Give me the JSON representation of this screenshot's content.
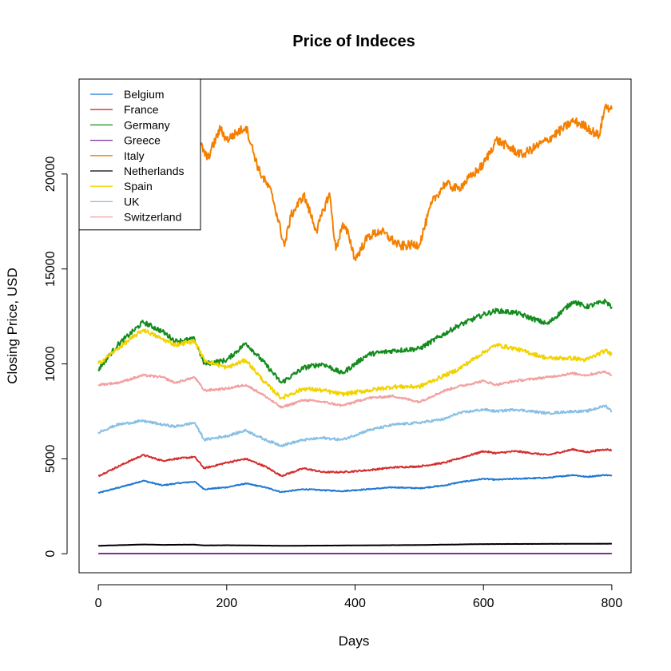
{
  "chart_data": {
    "type": "line",
    "title": "Price of Indeces",
    "xlabel": "Days",
    "ylabel": "Closing Price, USD",
    "xlim": [
      -30,
      830
    ],
    "ylim": [
      -1000,
      25000
    ],
    "xticks": [
      0,
      200,
      400,
      600,
      800
    ],
    "yticks": [
      0,
      5000,
      10000,
      15000,
      20000
    ],
    "grid": false,
    "legend_position": "top-left",
    "series": [
      {
        "name": "Belgium",
        "color": "#1F78D4",
        "x": [
          0,
          50,
          70,
          100,
          120,
          150,
          165,
          200,
          230,
          260,
          285,
          320,
          350,
          380,
          420,
          460,
          500,
          540,
          560,
          600,
          620,
          650,
          700,
          740,
          760,
          790,
          800
        ],
        "y": [
          3200,
          3650,
          3850,
          3600,
          3700,
          3800,
          3400,
          3500,
          3700,
          3500,
          3250,
          3400,
          3350,
          3300,
          3400,
          3500,
          3450,
          3600,
          3750,
          3950,
          3900,
          3950,
          4000,
          4150,
          4050,
          4150,
          4100
        ]
      },
      {
        "name": "France",
        "color": "#D32F2F",
        "x": [
          0,
          50,
          70,
          100,
          120,
          150,
          165,
          200,
          230,
          260,
          285,
          320,
          350,
          380,
          420,
          460,
          500,
          540,
          560,
          600,
          620,
          650,
          700,
          740,
          760,
          790,
          800
        ],
        "y": [
          4100,
          4900,
          5200,
          4900,
          5000,
          5100,
          4500,
          4800,
          5000,
          4600,
          4100,
          4500,
          4300,
          4300,
          4400,
          4550,
          4600,
          4800,
          5000,
          5400,
          5300,
          5400,
          5200,
          5500,
          5350,
          5500,
          5450
        ]
      },
      {
        "name": "Germany",
        "color": "#128C1C",
        "x": [
          0,
          30,
          70,
          100,
          120,
          150,
          165,
          200,
          230,
          260,
          285,
          320,
          350,
          380,
          420,
          460,
          500,
          540,
          560,
          600,
          620,
          650,
          700,
          740,
          760,
          790,
          800
        ],
        "y": [
          9700,
          11000,
          12200,
          11700,
          11200,
          11300,
          10000,
          10200,
          11100,
          10000,
          9000,
          9800,
          10000,
          9500,
          10500,
          10700,
          10800,
          11600,
          12000,
          12600,
          12800,
          12700,
          12100,
          13300,
          13000,
          13300,
          13000
        ]
      },
      {
        "name": "Greece",
        "color": "#7B2FA0",
        "x": [
          0,
          200,
          400,
          600,
          800
        ],
        "y": [
          10,
          10,
          10,
          10,
          10
        ]
      },
      {
        "name": "Italy",
        "color": "#F57F00",
        "x": [
          160,
          170,
          190,
          200,
          230,
          250,
          270,
          290,
          300,
          320,
          340,
          360,
          370,
          380,
          390,
          400,
          420,
          440,
          470,
          500,
          520,
          540,
          560,
          600,
          620,
          660,
          700,
          740,
          760,
          780,
          790,
          800
        ],
        "y": [
          21500,
          20800,
          22400,
          21800,
          22500,
          20200,
          19000,
          16200,
          17800,
          18900,
          17000,
          19000,
          16000,
          17300,
          16800,
          15500,
          16700,
          17000,
          16200,
          16300,
          18500,
          19500,
          19200,
          20500,
          21800,
          21000,
          21800,
          22800,
          22500,
          22000,
          23600,
          23400
        ]
      },
      {
        "name": "Netherlands",
        "color": "#000000",
        "x": [
          0,
          50,
          70,
          100,
          150,
          165,
          200,
          285,
          350,
          400,
          500,
          600,
          700,
          800
        ],
        "y": [
          420,
          470,
          490,
          470,
          480,
          440,
          450,
          420,
          430,
          440,
          460,
          510,
          520,
          530
        ]
      },
      {
        "name": "Spain",
        "color": "#F2D300",
        "x": [
          0,
          30,
          70,
          100,
          120,
          150,
          165,
          200,
          230,
          260,
          285,
          320,
          350,
          380,
          420,
          460,
          500,
          540,
          560,
          600,
          620,
          650,
          700,
          740,
          760,
          790,
          800
        ],
        "y": [
          10000,
          10800,
          11800,
          11300,
          11000,
          11200,
          10200,
          9800,
          10200,
          9000,
          8200,
          8700,
          8600,
          8400,
          8600,
          8800,
          8800,
          9400,
          9700,
          10600,
          11000,
          10800,
          10300,
          10300,
          10200,
          10700,
          10500
        ]
      },
      {
        "name": "UK",
        "color": "#87BFE6",
        "x": [
          0,
          30,
          70,
          100,
          120,
          150,
          165,
          200,
          230,
          260,
          285,
          320,
          350,
          380,
          420,
          460,
          500,
          540,
          560,
          600,
          620,
          650,
          700,
          740,
          760,
          790,
          800
        ],
        "y": [
          6400,
          6800,
          7000,
          6800,
          6700,
          6900,
          6000,
          6200,
          6500,
          6000,
          5700,
          6000,
          6100,
          6000,
          6500,
          6800,
          6900,
          7100,
          7400,
          7600,
          7500,
          7600,
          7400,
          7500,
          7500,
          7800,
          7500
        ]
      },
      {
        "name": "Switzerland",
        "color": "#F2A0A0",
        "x": [
          0,
          30,
          70,
          100,
          120,
          150,
          165,
          200,
          230,
          260,
          285,
          320,
          350,
          380,
          420,
          460,
          500,
          540,
          560,
          600,
          620,
          650,
          700,
          740,
          760,
          790,
          800
        ],
        "y": [
          8900,
          9000,
          9400,
          9300,
          9000,
          9300,
          8600,
          8700,
          8900,
          8300,
          7700,
          8100,
          8000,
          7800,
          8200,
          8300,
          8000,
          8600,
          8800,
          9100,
          8900,
          9100,
          9300,
          9500,
          9400,
          9600,
          9400
        ]
      }
    ]
  }
}
